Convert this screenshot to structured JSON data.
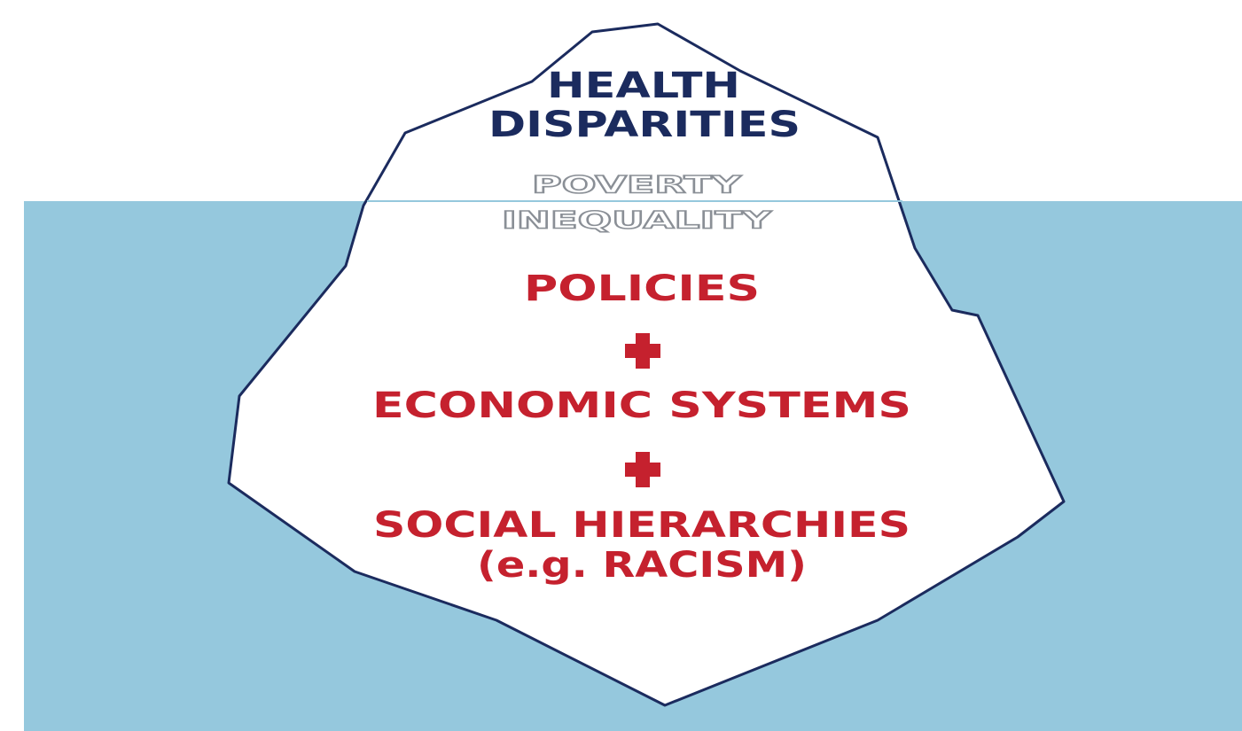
{
  "tip": {
    "lines": [
      "HEALTH",
      "DISPARITIES"
    ]
  },
  "below_surface": {
    "lines": [
      "POVERTY",
      "INEQUALITY"
    ]
  },
  "base": {
    "items": [
      {
        "lines": [
          "POLICIES"
        ]
      },
      {
        "lines": [
          "ECONOMIC SYSTEMS"
        ]
      },
      {
        "lines": [
          "SOCIAL HIERARCHIES",
          "(e.g. RACISM)"
        ]
      }
    ]
  }
}
